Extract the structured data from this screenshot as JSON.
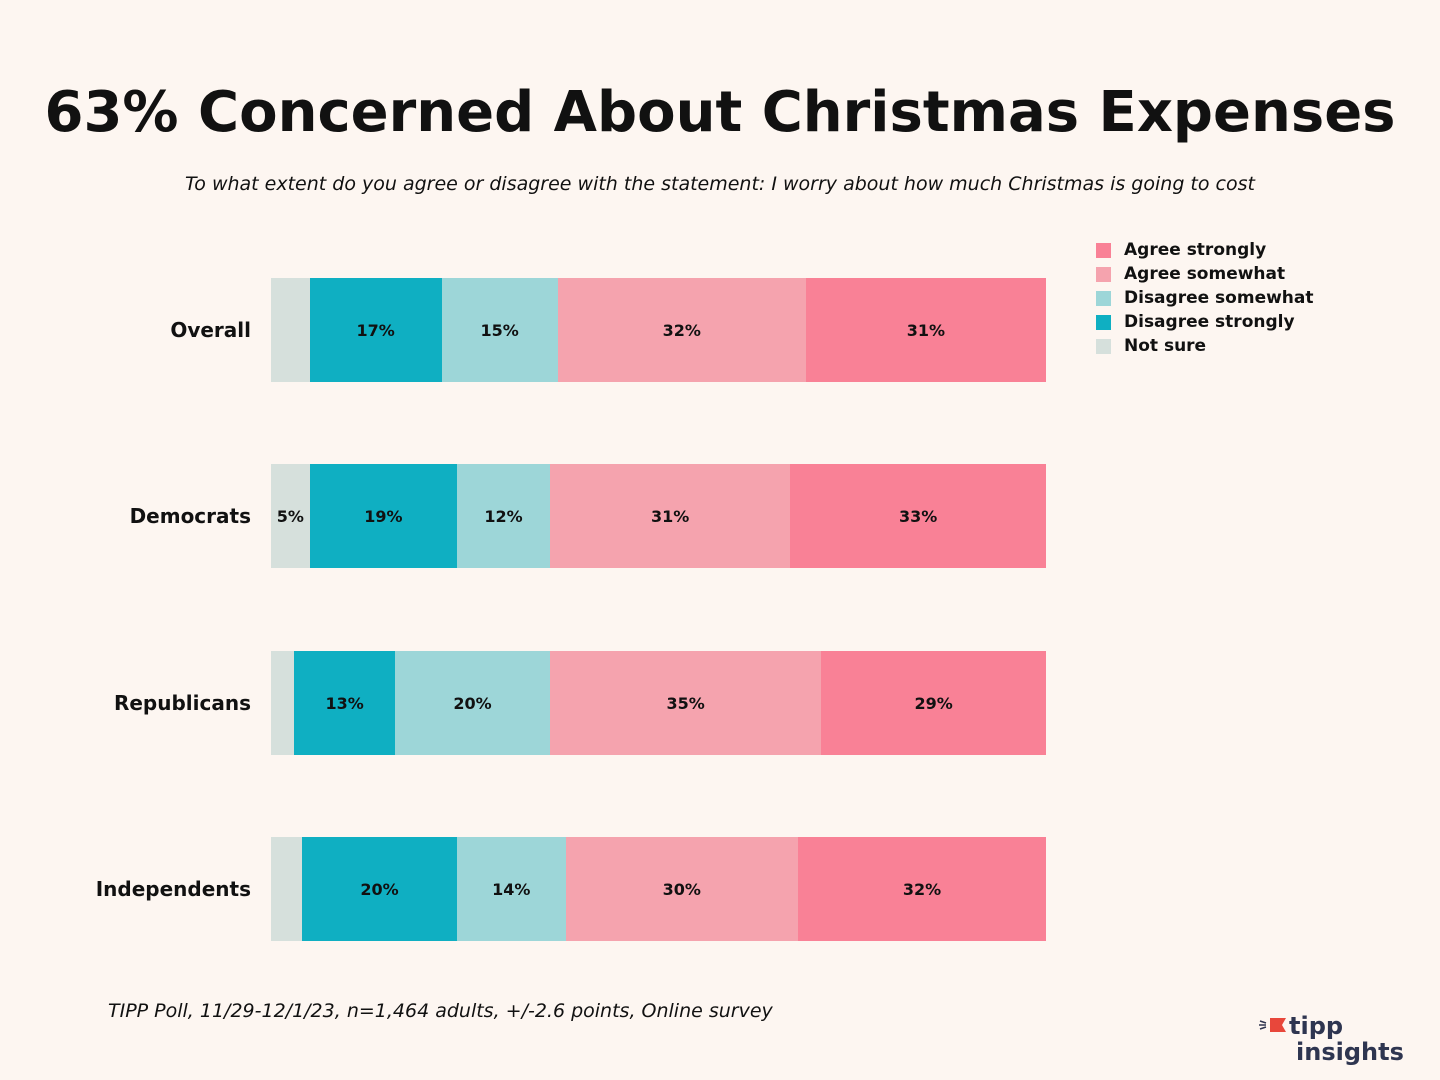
{
  "title": "63% Concerned About Christmas Expenses",
  "subtitle": "To what extent do you agree or disagree with the statement: I worry about how much Christmas is going to cost",
  "footer": "TIPP Poll, 11/29-12/1/23, n=1,464 adults, +/-2.6 points, Online survey",
  "logo": {
    "line1": "tipp",
    "line2": "insights",
    "text_color": "#2e3550",
    "accent_color": "#e8473b"
  },
  "chart_data": {
    "type": "bar",
    "orientation": "horizontal",
    "stacked": true,
    "title": "63% Concerned About Christmas Expenses",
    "subtitle": "To what extent do you agree or disagree with the statement: I worry about how much Christmas is going to cost",
    "categories": [
      "Overall",
      "Democrats",
      "Republicans",
      "Independents"
    ],
    "legend_position": "top-right",
    "grid": false,
    "series": [
      {
        "name": "Not sure",
        "color": "#d6e0dc",
        "values": [
          5,
          5,
          3,
          4
        ],
        "labels": [
          "",
          "5%",
          "",
          ""
        ]
      },
      {
        "name": "Disagree strongly",
        "color": "#0fafc2",
        "values": [
          17,
          19,
          13,
          20
        ],
        "labels": [
          "17%",
          "19%",
          "13%",
          "20%"
        ]
      },
      {
        "name": "Disagree somewhat",
        "color": "#9dd6d8",
        "values": [
          15,
          12,
          20,
          14
        ],
        "labels": [
          "15%",
          "12%",
          "20%",
          "14%"
        ]
      },
      {
        "name": "Agree somewhat",
        "color": "#f5a3ae",
        "values": [
          32,
          31,
          35,
          30
        ],
        "labels": [
          "32%",
          "31%",
          "35%",
          "30%"
        ]
      },
      {
        "name": "Agree strongly",
        "color": "#f98196",
        "values": [
          31,
          33,
          29,
          32
        ],
        "labels": [
          "31%",
          "33%",
          "29%",
          "32%"
        ]
      }
    ],
    "legend_order": [
      "Agree strongly",
      "Agree somewhat",
      "Disagree somewhat",
      "Disagree strongly",
      "Not sure"
    ]
  }
}
